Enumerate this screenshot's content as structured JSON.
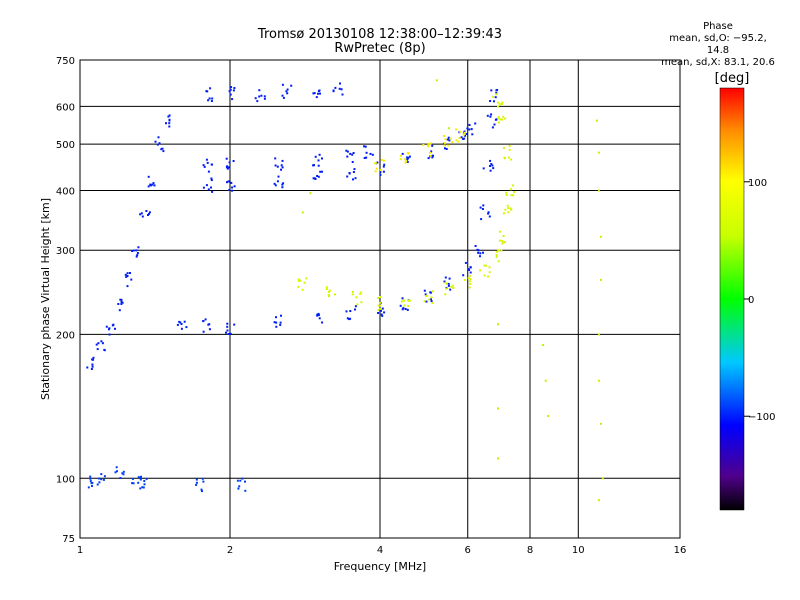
{
  "header": {
    "title_line1": "Tromsø 20130108 12:38:00–12:39:43",
    "title_line2": "RwPretec (8p)"
  },
  "phase_info": {
    "heading": "Phase",
    "line_o": "mean, sd,O: −95.2, 14.8",
    "line_x": "mean, sd,X: 83.1, 20.6"
  },
  "colorbar": {
    "label": "[deg]",
    "ticks": [
      "100",
      "0",
      "−100"
    ],
    "tick_values": [
      100,
      0,
      -100
    ],
    "range": [
      -180,
      180
    ]
  },
  "chart_data": {
    "type": "scatter",
    "xlabel": "Frequency [MHz]",
    "ylabel": "Stationary phase Virtual Height [km]",
    "xscale": "log",
    "yscale": "log",
    "xlim": [
      1,
      16
    ],
    "ylim": [
      75,
      750
    ],
    "x_ticks": [
      1,
      2,
      4,
      6,
      8,
      10,
      16
    ],
    "x_tick_labels": [
      "1",
      "2",
      "4",
      "6",
      "8",
      "10",
      "16"
    ],
    "y_ticks": [
      75,
      100,
      200,
      300,
      400,
      500,
      600,
      750
    ],
    "y_tick_labels": [
      "75",
      "100",
      "200",
      "300",
      "400",
      "500",
      "600",
      "750"
    ],
    "grid": true,
    "traces": [
      {
        "kind": "O",
        "phase": -100,
        "points": [
          [
            1.05,
            175
          ],
          [
            1.1,
            190
          ],
          [
            1.15,
            205
          ],
          [
            1.2,
            230
          ],
          [
            1.25,
            260
          ],
          [
            1.3,
            300
          ],
          [
            1.35,
            360
          ],
          [
            1.4,
            420
          ],
          [
            1.45,
            500
          ],
          [
            1.5,
            560
          ],
          [
            1.6,
            210
          ],
          [
            1.8,
            208
          ],
          [
            2.0,
            207
          ],
          [
            2.5,
            212
          ],
          [
            3.0,
            218
          ],
          [
            3.5,
            222
          ],
          [
            4.0,
            226
          ],
          [
            4.5,
            232
          ],
          [
            5.0,
            240
          ],
          [
            5.5,
            255
          ],
          [
            6.0,
            275
          ],
          [
            6.3,
            300
          ],
          [
            6.5,
            360
          ],
          [
            6.6,
            450
          ],
          [
            6.7,
            560
          ],
          [
            6.8,
            630
          ]
        ]
      },
      {
        "kind": "X",
        "phase": 100,
        "points": [
          [
            2.8,
            255
          ],
          [
            3.2,
            245
          ],
          [
            3.6,
            238
          ],
          [
            4.0,
            232
          ],
          [
            4.5,
            235
          ],
          [
            5.0,
            240
          ],
          [
            5.5,
            248
          ],
          [
            6.0,
            258
          ],
          [
            6.5,
            270
          ],
          [
            6.9,
            290
          ],
          [
            7.1,
            320
          ],
          [
            7.2,
            360
          ],
          [
            7.3,
            400
          ],
          [
            7.2,
            480
          ],
          [
            7.0,
            560
          ],
          [
            6.9,
            620
          ]
        ]
      },
      {
        "kind": "F2",
        "phase": -100,
        "points": [
          [
            1.8,
            410
          ],
          [
            2.0,
            412
          ],
          [
            2.5,
            418
          ],
          [
            3.0,
            425
          ],
          [
            3.5,
            432
          ],
          [
            4.0,
            445
          ],
          [
            4.5,
            462
          ],
          [
            5.0,
            480
          ],
          [
            5.5,
            500
          ],
          [
            5.9,
            520
          ],
          [
            6.1,
            540
          ]
        ]
      },
      {
        "kind": "X",
        "phase": 110,
        "points": [
          [
            4.0,
            450
          ],
          [
            4.5,
            468
          ],
          [
            5.0,
            485
          ],
          [
            5.5,
            505
          ],
          [
            5.8,
            520
          ]
        ]
      },
      {
        "kind": "F2",
        "phase": -100,
        "points": [
          [
            1.8,
            450
          ],
          [
            2.0,
            452
          ],
          [
            2.5,
            456
          ],
          [
            3.0,
            460
          ],
          [
            3.5,
            472
          ],
          [
            3.8,
            480
          ]
        ]
      },
      {
        "kind": "F2",
        "phase": -100,
        "points": [
          [
            1.8,
            635
          ],
          [
            2.0,
            640
          ],
          [
            2.3,
            635
          ],
          [
            2.6,
            645
          ],
          [
            3.0,
            645
          ],
          [
            3.3,
            650
          ]
        ]
      },
      {
        "kind": "Es",
        "phase": -90,
        "points": [
          [
            1.05,
            98
          ],
          [
            1.1,
            100
          ],
          [
            1.2,
            102
          ],
          [
            1.3,
            100
          ],
          [
            1.35,
            98
          ],
          [
            1.75,
            97
          ],
          [
            2.1,
            97
          ]
        ]
      },
      {
        "kind": "noise",
        "phase": 90,
        "points": [
          [
            10.9,
            560
          ],
          [
            11.0,
            480
          ],
          [
            11.0,
            400
          ],
          [
            11.1,
            320
          ],
          [
            11.1,
            260
          ],
          [
            11.0,
            200
          ],
          [
            11.0,
            160
          ],
          [
            11.1,
            130
          ],
          [
            11.2,
            100
          ],
          [
            11.0,
            90
          ],
          [
            6.9,
            210
          ],
          [
            6.9,
            140
          ],
          [
            6.9,
            110
          ],
          [
            8.5,
            190
          ],
          [
            8.6,
            160
          ],
          [
            8.7,
            135
          ],
          [
            5.2,
            680
          ],
          [
            5.5,
            540
          ],
          [
            2.8,
            360
          ],
          [
            2.9,
            395
          ]
        ]
      }
    ]
  }
}
